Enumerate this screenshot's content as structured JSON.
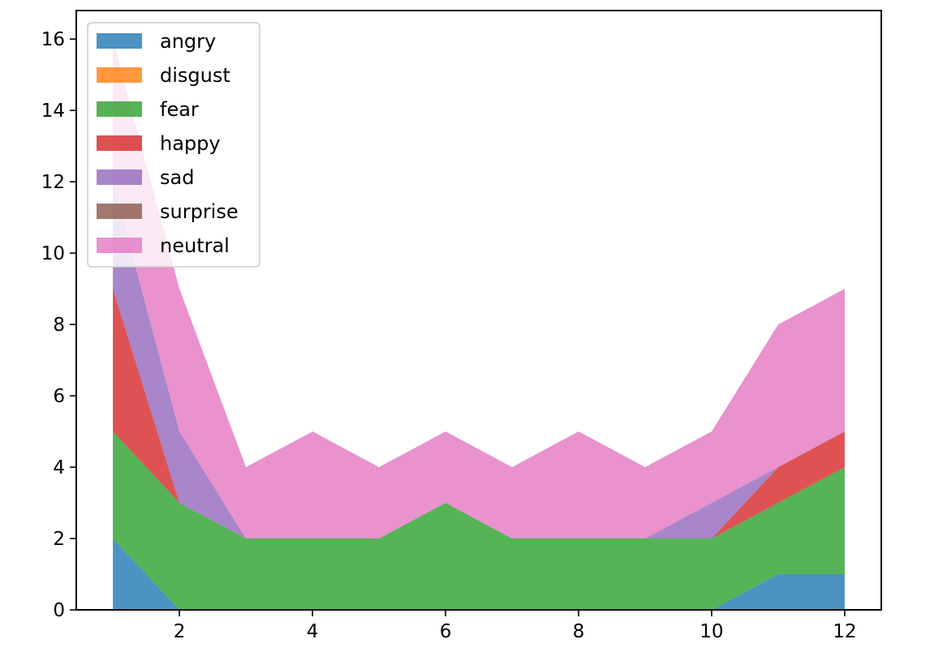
{
  "chart_data": {
    "type": "area",
    "stacked": true,
    "title": "",
    "xlabel": "",
    "ylabel": "",
    "x": [
      1,
      2,
      3,
      4,
      5,
      6,
      7,
      8,
      9,
      10,
      11,
      12
    ],
    "xlim": [
      0.45,
      12.55
    ],
    "ylim": [
      0,
      16.8
    ],
    "xticks": [
      2,
      4,
      6,
      8,
      10,
      12
    ],
    "yticks": [
      0,
      2,
      4,
      6,
      8,
      10,
      12,
      14,
      16
    ],
    "grid": false,
    "legend_position": "top-left",
    "series": [
      {
        "name": "angry",
        "color": "#1f77b4",
        "values": [
          2,
          0,
          0,
          0,
          0,
          0,
          0,
          0,
          0,
          0,
          1,
          1
        ]
      },
      {
        "name": "disgust",
        "color": "#ff7f0e",
        "values": [
          0,
          0,
          0,
          0,
          0,
          0,
          0,
          0,
          0,
          0,
          0,
          0
        ]
      },
      {
        "name": "fear",
        "color": "#2ca02c",
        "values": [
          3,
          3,
          2,
          2,
          2,
          3,
          2,
          2,
          2,
          2,
          2,
          3
        ]
      },
      {
        "name": "happy",
        "color": "#d62728",
        "values": [
          4,
          0,
          0,
          0,
          0,
          0,
          0,
          0,
          0,
          0,
          1,
          1
        ]
      },
      {
        "name": "sad",
        "color": "#9467bd",
        "values": [
          3,
          2,
          0,
          0,
          0,
          0,
          0,
          0,
          0,
          1,
          0,
          0
        ]
      },
      {
        "name": "surprise",
        "color": "#8c564b",
        "values": [
          0,
          0,
          0,
          0,
          0,
          0,
          0,
          0,
          0,
          0,
          0,
          0
        ]
      },
      {
        "name": "neutral",
        "color": "#e377c2",
        "values": [
          4,
          4,
          2,
          3,
          2,
          2,
          2,
          3,
          2,
          2,
          4,
          4
        ]
      }
    ]
  }
}
